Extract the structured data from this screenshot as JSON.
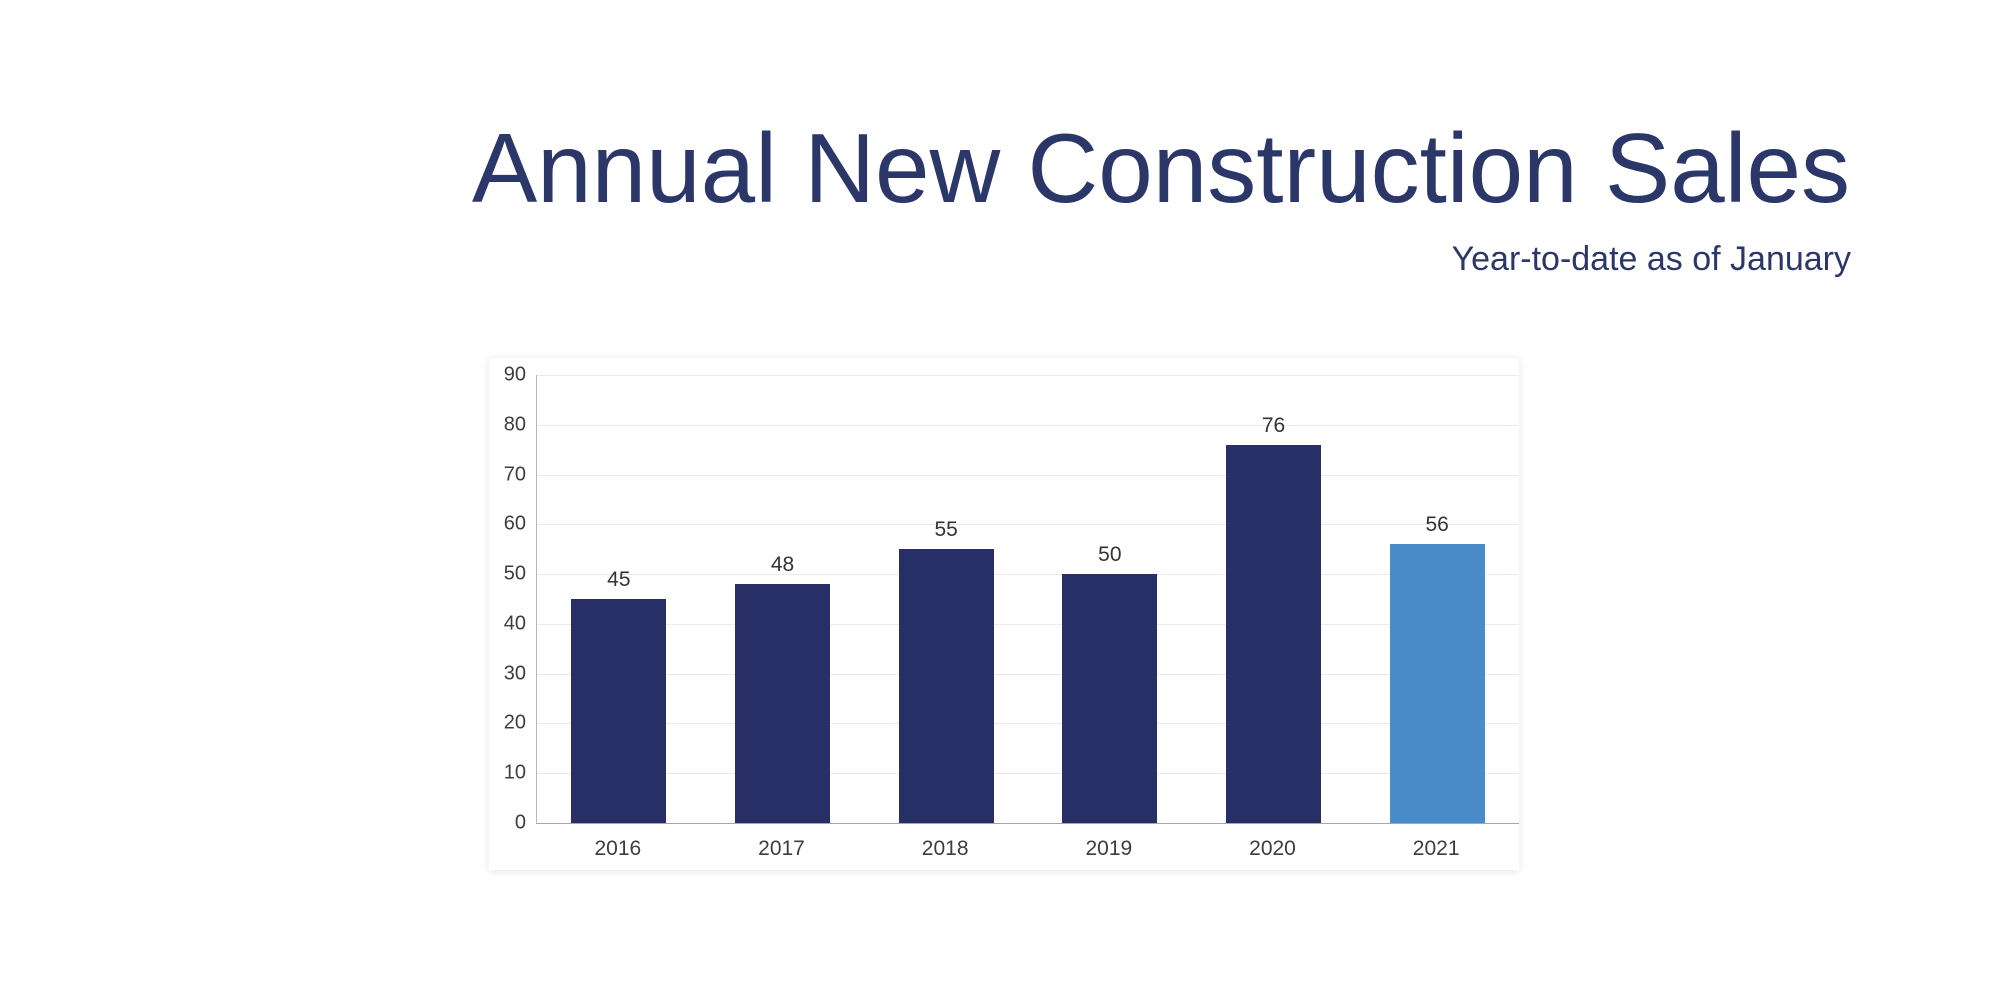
{
  "page": {
    "title": "Annual New Construction Sales",
    "subtitle": "Year-to-date as of January"
  },
  "colors": {
    "title_navy": "#2b3769",
    "bar_default": "#272f66",
    "bar_highlight": "#4a8bc9",
    "gridline": "#e9ebf3",
    "axis_line": "#a6a6a6",
    "tick_text": "#3d3d3d",
    "value_label": "#333333"
  },
  "chart_data": {
    "type": "bar",
    "title": "Annual New Construction Sales",
    "subtitle": "Year-to-date as of January",
    "categories": [
      "2016",
      "2017",
      "2018",
      "2019",
      "2020",
      "2021"
    ],
    "values": [
      45,
      48,
      55,
      50,
      76,
      56
    ],
    "value_labels": [
      "45",
      "48",
      "55",
      "50",
      "76",
      "56"
    ],
    "highlight_index": 5,
    "xlabel": "",
    "ylabel": "",
    "ylim": [
      0,
      90
    ],
    "ytick_step": 10,
    "yticks": [
      0,
      10,
      20,
      30,
      40,
      50,
      60,
      70,
      80,
      90
    ],
    "grid": "horizontal",
    "legend": "none",
    "bar_color": "#272f66",
    "highlight_color": "#4a8bc9"
  }
}
